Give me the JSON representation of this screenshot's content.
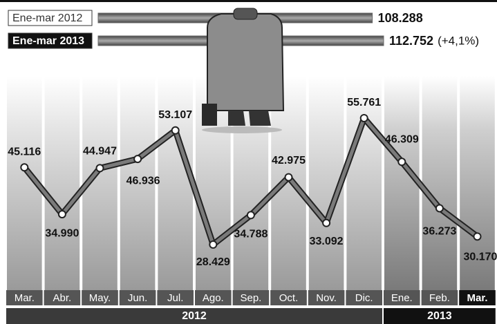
{
  "chart_data": [
    {
      "type": "hbar",
      "categories": [
        "Ene-mar 2012",
        "Ene-mar 2013"
      ],
      "values": [
        108288,
        112752
      ],
      "value_labels": [
        "108.288",
        "112.752"
      ],
      "annotation": "(+4,1%)",
      "color": "#6a6a6a"
    },
    {
      "type": "line",
      "categories": [
        "Mar.",
        "Abr.",
        "May.",
        "Jun.",
        "Jul.",
        "Ago.",
        "Sep.",
        "Oct.",
        "Nov.",
        "Dic.",
        "Ene.",
        "Feb.",
        "Mar."
      ],
      "values": [
        45116,
        34990,
        44947,
        46936,
        53107,
        28429,
        34788,
        42975,
        33092,
        55761,
        46309,
        36273,
        30170
      ],
      "value_labels": [
        "45.116",
        "34.990",
        "44.947",
        "46.936",
        "53.107",
        "28.429",
        "34.788",
        "42.975",
        "33.092",
        "55.761",
        "46.309",
        "36.273",
        "30.170"
      ],
      "groups": [
        {
          "label": "2012",
          "from": "Mar.",
          "to": "Dic."
        },
        {
          "label": "2013",
          "from": "Ene.",
          "to": "Mar."
        }
      ],
      "color": "#7a7a7a"
    }
  ]
}
